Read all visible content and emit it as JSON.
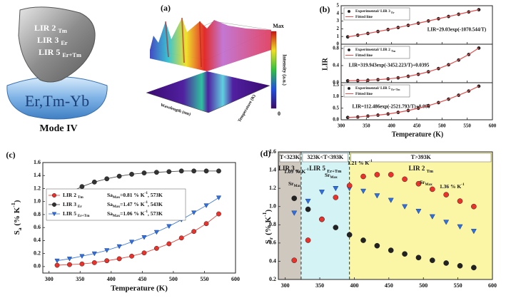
{
  "illustration": {
    "labels": [
      [
        "LIR 2 ",
        {
          "sub": "Tm"
        }
      ],
      [
        "LIR 3 ",
        {
          "sub": "Er"
        }
      ],
      [
        "LIR 5 ",
        {
          "sub": "Er+Tm"
        }
      ]
    ],
    "host": "Er,Tm-Yb",
    "mode": "Mode IV"
  },
  "panel_a": {
    "panel": "(a)",
    "colorbar_max": "Max",
    "colorbar_min": "0",
    "colorbar_label": "Intensity (a.u.)",
    "x_label": "Wavelength (nm)",
    "y_label": "Temperature (K)"
  },
  "chart_data": [
    {
      "type": "scatter",
      "panel": "(b)",
      "x": [
        313,
        333,
        353,
        373,
        393,
        413,
        433,
        453,
        473,
        493,
        513,
        533,
        553,
        573
      ],
      "xlim": [
        300,
        600
      ],
      "xticks": [
        300,
        350,
        400,
        450,
        500,
        550,
        600
      ],
      "show_xtick_labels": false,
      "ylim": [
        0,
        5
      ],
      "yticks": [
        0,
        1,
        2,
        3,
        4,
        5
      ],
      "series": [
        {
          "name": [
            "Experimental/ LIR 3 ",
            {
              "sub": "Er"
            }
          ],
          "color": "#222222",
          "marker": "circle",
          "line": false,
          "values": [
            0.95,
            1.17,
            1.4,
            1.65,
            1.9,
            2.17,
            2.45,
            2.73,
            3.02,
            3.31,
            3.6,
            3.89,
            4.19,
            4.48
          ]
        },
        {
          "name": "Fitted line",
          "color": "#e05050",
          "line": true,
          "values": [
            0.95,
            1.17,
            1.4,
            1.65,
            1.9,
            2.17,
            2.45,
            2.73,
            3.02,
            3.31,
            3.6,
            3.89,
            4.19,
            4.48
          ]
        }
      ],
      "equation": "LIR=29.03exp(-1070.544/T)"
    },
    {
      "type": "scatter",
      "ylabel": "LIR",
      "x": [
        313,
        333,
        353,
        373,
        393,
        413,
        433,
        453,
        473,
        493,
        513,
        533,
        553,
        573
      ],
      "xlim": [
        300,
        600
      ],
      "xticks": [
        300,
        350,
        400,
        450,
        500,
        550,
        600
      ],
      "show_xtick_labels": false,
      "ylim": [
        0,
        0.9
      ],
      "yticks": [
        {
          "value": 0,
          "label": "0.0"
        },
        0.4,
        0.8
      ],
      "series": [
        {
          "name": [
            "Experimental/ LIR 2 ",
            {
              "sub": "Tm"
            }
          ],
          "color": "#222222",
          "marker": "circle",
          "line": false,
          "values": [
            0.045,
            0.05,
            0.058,
            0.07,
            0.089,
            0.114,
            0.15,
            0.196,
            0.256,
            0.33,
            0.42,
            0.53,
            0.66,
            0.81
          ]
        },
        {
          "name": "Fitted line",
          "color": "#e05050",
          "line": true,
          "values": [
            0.045,
            0.05,
            0.058,
            0.07,
            0.089,
            0.114,
            0.15,
            0.196,
            0.256,
            0.33,
            0.42,
            0.53,
            0.66,
            0.81
          ]
        }
      ],
      "equation": "LIR=319.943exp(-3452.223/T)+0.0395"
    },
    {
      "type": "scatter",
      "xlabel": "Temperature (K)",
      "x": [
        313,
        333,
        353,
        373,
        393,
        413,
        433,
        453,
        473,
        493,
        513,
        533,
        553,
        573
      ],
      "xlim": [
        300,
        600
      ],
      "xticks": [
        300,
        350,
        400,
        450,
        500,
        550,
        600
      ],
      "ylim": [
        0,
        1.6
      ],
      "yticks": [
        {
          "value": 0,
          "label": "0.0"
        },
        0.5,
        {
          "value": 1,
          "label": "1.0"
        },
        1.5
      ],
      "series": [
        {
          "name": [
            "Experimental/ LIR 5 ",
            {
              "sub": "Er+Tm"
            }
          ],
          "color": "#222222",
          "marker": "circle",
          "line": false,
          "values": [
            0.1,
            0.12,
            0.16,
            0.2,
            0.25,
            0.32,
            0.4,
            0.5,
            0.61,
            0.74,
            0.89,
            1.06,
            1.24,
            1.45
          ]
        },
        {
          "name": "Fitted line",
          "color": "#e05050",
          "line": true,
          "values": [
            0.1,
            0.12,
            0.16,
            0.2,
            0.25,
            0.32,
            0.4,
            0.5,
            0.61,
            0.74,
            0.89,
            1.06,
            1.24,
            1.45
          ]
        }
      ],
      "equation": "LIR=112.486exp(-2521.793/T)+0.066"
    },
    {
      "type": "scatter",
      "panel": "(c)",
      "xlabel": "Temperature (K)",
      "ylabel": [
        "S",
        {
          "sub": "a"
        },
        " (% K",
        {
          "sup": "-1"
        },
        ")"
      ],
      "x": [
        313,
        333,
        353,
        373,
        393,
        413,
        433,
        453,
        473,
        493,
        513,
        533,
        553,
        573
      ],
      "xlim": [
        290,
        600
      ],
      "xticks": [
        300,
        350,
        400,
        450,
        500,
        550,
        600
      ],
      "ylim": [
        -0.1,
        1.6
      ],
      "yticks": [
        {
          "value": 0,
          "label": "0.0"
        },
        0.2,
        0.4,
        0.6,
        0.8,
        {
          "value": 1,
          "label": "1.0"
        },
        1.2,
        1.4,
        1.6
      ],
      "series": [
        {
          "name": [
            "LIR 2 ",
            {
              "sub": "Tm"
            }
          ],
          "note": [
            "Sa",
            {
              "sub": "Max"
            },
            "=0.81 % K",
            {
              "sup": "-1"
            },
            ", 573K"
          ],
          "color": "#e8322b",
          "marker": "circle",
          "line": true,
          "values": [
            0.02,
            0.03,
            0.04,
            0.06,
            0.09,
            0.12,
            0.16,
            0.21,
            0.28,
            0.35,
            0.44,
            0.54,
            0.66,
            0.81
          ]
        },
        {
          "name": [
            "LIR 3 ",
            {
              "sub": "Er"
            }
          ],
          "note": [
            "Sa",
            {
              "sub": "Max"
            },
            "=1.47 % K",
            {
              "sup": "-1"
            },
            ", 543K"
          ],
          "color": "#333333",
          "marker": "circle",
          "line": true,
          "values": [
            1.02,
            1.14,
            1.23,
            1.3,
            1.35,
            1.39,
            1.42,
            1.44,
            1.45,
            1.46,
            1.47,
            1.47,
            1.47,
            1.47
          ]
        },
        {
          "name": [
            "LIR 5 ",
            {
              "sub": "Er+Tm"
            }
          ],
          "note": [
            "Sa",
            {
              "sub": "Max"
            },
            "=1.06 % K",
            {
              "sup": "-1"
            },
            ", 573K"
          ],
          "color": "#2f6fe0",
          "marker": "triangle-down",
          "line": true,
          "values": [
            0.09,
            0.12,
            0.16,
            0.2,
            0.25,
            0.31,
            0.38,
            0.45,
            0.53,
            0.62,
            0.72,
            0.83,
            0.94,
            1.06
          ]
        }
      ]
    },
    {
      "type": "scatter",
      "panel": "(d)",
      "ylabel": [
        "S",
        {
          "sub": "r"
        },
        " (% K",
        {
          "sup": "-1"
        },
        ")"
      ],
      "x": [
        313,
        333,
        353,
        373,
        393,
        413,
        433,
        453,
        473,
        493,
        513,
        533,
        553,
        573
      ],
      "xlim": [
        290,
        600
      ],
      "xticks": [
        300,
        350,
        400,
        450,
        500,
        550,
        600
      ],
      "ylim": [
        0.2,
        1.6
      ],
      "yticks": [
        0.2,
        0.4,
        0.6,
        0.8,
        {
          "value": 1,
          "label": "1.0"
        },
        1.2,
        1.4,
        1.6
      ],
      "boundaries": [
        323,
        393
      ],
      "regions": [
        {
          "label": "T<323K",
          "sublabel": [
            "LIR 3 ",
            {
              "sub": "Er"
            }
          ],
          "color": "#cfc8bf"
        },
        {
          "label": "323K<T<393K",
          "sublabel": [
            "LIR 5 ",
            {
              "sub": "Er+Tm"
            }
          ],
          "color": "#d4f3f5"
        },
        {
          "label": "T>393K",
          "sublabel": [
            "LIR 2 ",
            {
              "sub": "Tm"
            }
          ],
          "color": "#fbf6a6"
        }
      ],
      "series": [
        {
          "name": "LIR 3",
          "color": "#222222",
          "marker": "circle",
          "line": false,
          "values": [
            1.09,
            0.97,
            0.86,
            0.77,
            0.69,
            0.63,
            0.57,
            0.52,
            0.48,
            0.44,
            0.41,
            0.38,
            0.35,
            0.33
          ]
        },
        {
          "name": "LIR 5",
          "color": "#2f6fe0",
          "marker": "triangle-down",
          "line": false,
          "values": [
            0.93,
            1.06,
            1.16,
            1.2,
            1.2,
            1.17,
            1.12,
            1.07,
            1.0,
            0.95,
            0.89,
            0.83,
            0.78,
            0.73
          ]
        },
        {
          "name": "LIR 2",
          "color": "#e8322b",
          "marker": "circle",
          "line": false,
          "values": [
            0.41,
            0.63,
            0.86,
            1.1,
            1.23,
            1.33,
            1.35,
            1.35,
            1.3,
            1.25,
            1.19,
            1.13,
            1.06,
            1.0
          ]
        }
      ],
      "annotations": [
        [
          "1.09 % K",
          {
            "sup": "-1"
          }
        ],
        [
          "Sr",
          {
            "sub": "Max"
          }
        ],
        [
          "1.21 % K",
          {
            "sup": "-1"
          }
        ],
        [
          "Sr",
          {
            "sub": "Max"
          }
        ],
        [
          "1.36 % K",
          {
            "sup": "-1"
          }
        ],
        [
          "Sr",
          {
            "sub": "Max"
          }
        ]
      ]
    }
  ]
}
